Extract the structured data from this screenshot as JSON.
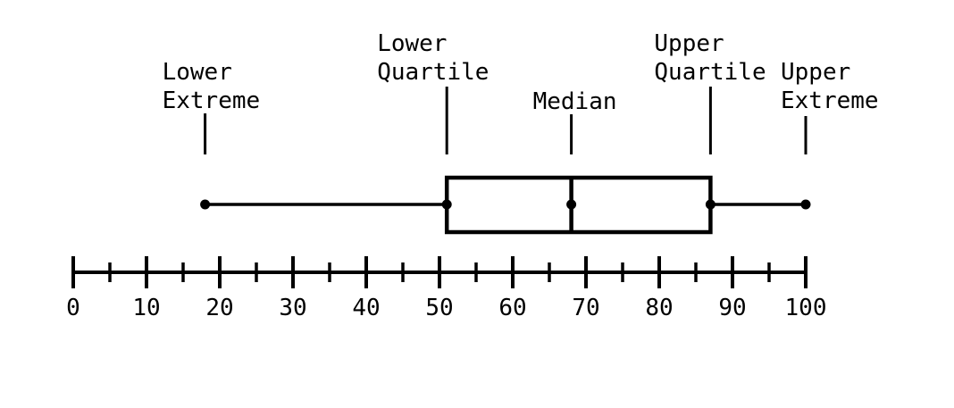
{
  "figure": {
    "background_color": "#ffffff",
    "ink_color": "#000000"
  },
  "chart_data": {
    "type": "boxplot",
    "orientation": "horizontal",
    "stats": {
      "lower_extreme": 18,
      "lower_quartile": 51,
      "median": 68,
      "upper_quartile": 87,
      "upper_extreme": 100
    },
    "axis": {
      "min": 0,
      "max": 100,
      "major_tick_step": 10,
      "minor_tick_step": 5,
      "major_tick_labels": [
        "0",
        "10",
        "20",
        "30",
        "40",
        "50",
        "60",
        "70",
        "80",
        "90",
        "100"
      ],
      "grid": false,
      "position": "below-box"
    },
    "annotations": [
      {
        "id": "lower-extreme",
        "lines": [
          "Lower",
          "Extreme"
        ],
        "value": 18
      },
      {
        "id": "lower-quartile",
        "lines": [
          "Lower",
          "Quartile"
        ],
        "value": 51
      },
      {
        "id": "median",
        "lines": [
          "Median"
        ],
        "value": 68
      },
      {
        "id": "upper-quartile",
        "lines": [
          "Upper",
          "Quartile"
        ],
        "value": 87
      },
      {
        "id": "upper-extreme",
        "lines": [
          "Upper",
          "Extreme"
        ],
        "value": 100
      }
    ]
  }
}
